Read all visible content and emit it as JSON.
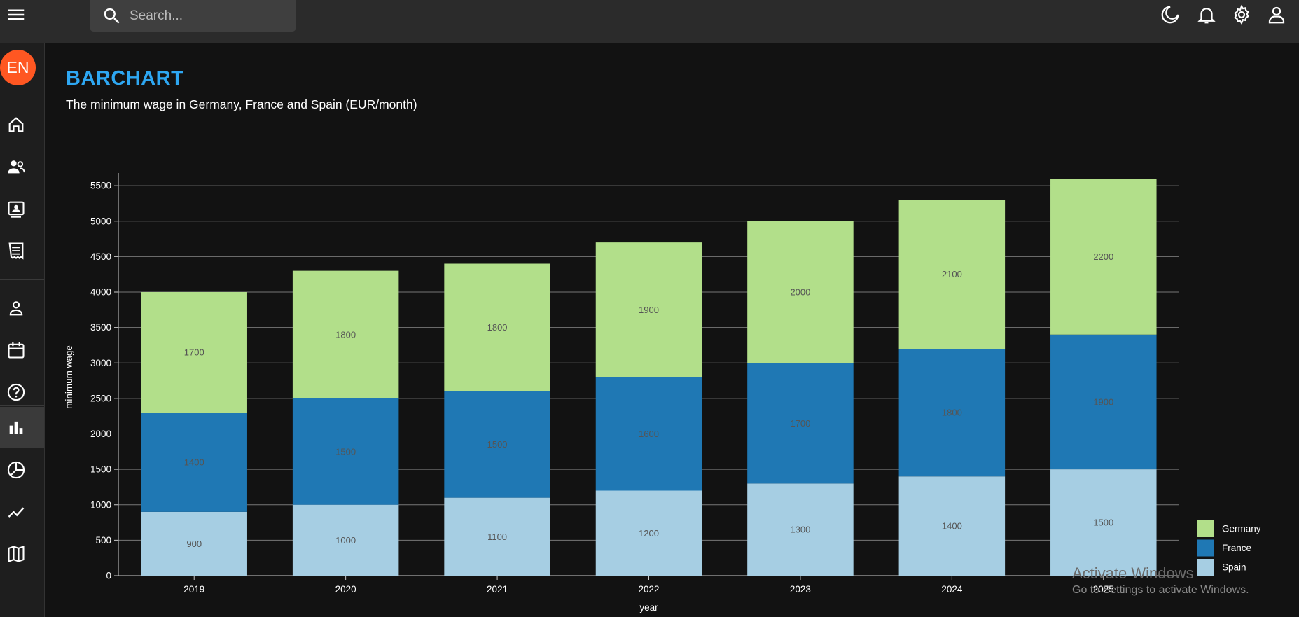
{
  "header": {
    "search_placeholder": "Search..."
  },
  "sidebar": {
    "avatar_text": "EN"
  },
  "page": {
    "title": "BARCHART",
    "subtitle": "The minimum wage in Germany, France and Spain (EUR/month)"
  },
  "chart_data": {
    "type": "bar",
    "stacked": true,
    "categories": [
      "2019",
      "2020",
      "2021",
      "2022",
      "2023",
      "2024",
      "2025"
    ],
    "series": [
      {
        "name": "Spain",
        "values": [
          900,
          1000,
          1100,
          1200,
          1300,
          1400,
          1500
        ],
        "color": "#a6cee3"
      },
      {
        "name": "France",
        "values": [
          1400,
          1500,
          1500,
          1600,
          1700,
          1800,
          1900
        ],
        "color": "#1f78b4"
      },
      {
        "name": "Germany",
        "values": [
          1700,
          1800,
          1800,
          1900,
          2000,
          2100,
          2200
        ],
        "color": "#b2df8a"
      }
    ],
    "legend_order": [
      "Germany",
      "France",
      "Spain"
    ],
    "xlabel": "year",
    "ylabel": "minimum wage",
    "ylim": [
      0,
      5600
    ],
    "yticks": [
      0,
      500,
      1000,
      1500,
      2000,
      2500,
      3000,
      3500,
      4000,
      4500,
      5000,
      5500
    ],
    "grid": true,
    "legend_position": "bottom-right"
  },
  "watermark": {
    "line1": "Activate Windows",
    "line2": "Go to Settings to activate Windows."
  }
}
